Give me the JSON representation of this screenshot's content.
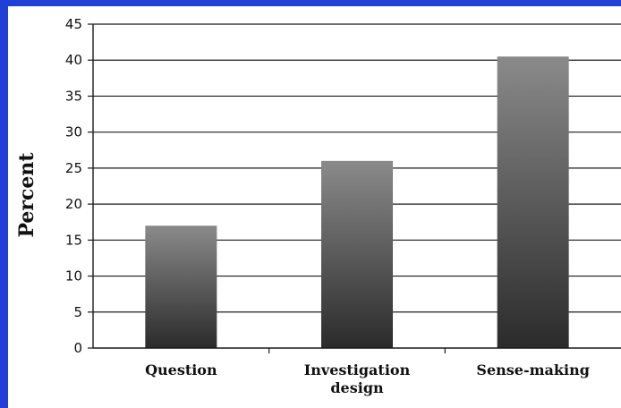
{
  "chart_data": {
    "type": "bar",
    "title": "",
    "xlabel": "",
    "ylabel": "Percent",
    "ylim": [
      0,
      45
    ],
    "ytick_step": 5,
    "yticks": [
      0,
      5,
      10,
      15,
      20,
      25,
      30,
      35,
      40,
      45
    ],
    "grid": true,
    "legend": "none",
    "categories": [
      {
        "lines": [
          "Question"
        ]
      },
      {
        "lines": [
          "Investigation",
          "design"
        ]
      },
      {
        "lines": [
          "Sense-making"
        ]
      }
    ],
    "values": [
      17,
      26,
      40.5
    ],
    "colors": {
      "border": "#1f3fd6",
      "bar_light": "#8a8a8a",
      "bar_dark": "#2b2b2b",
      "grid": "#1a1a1a"
    }
  }
}
